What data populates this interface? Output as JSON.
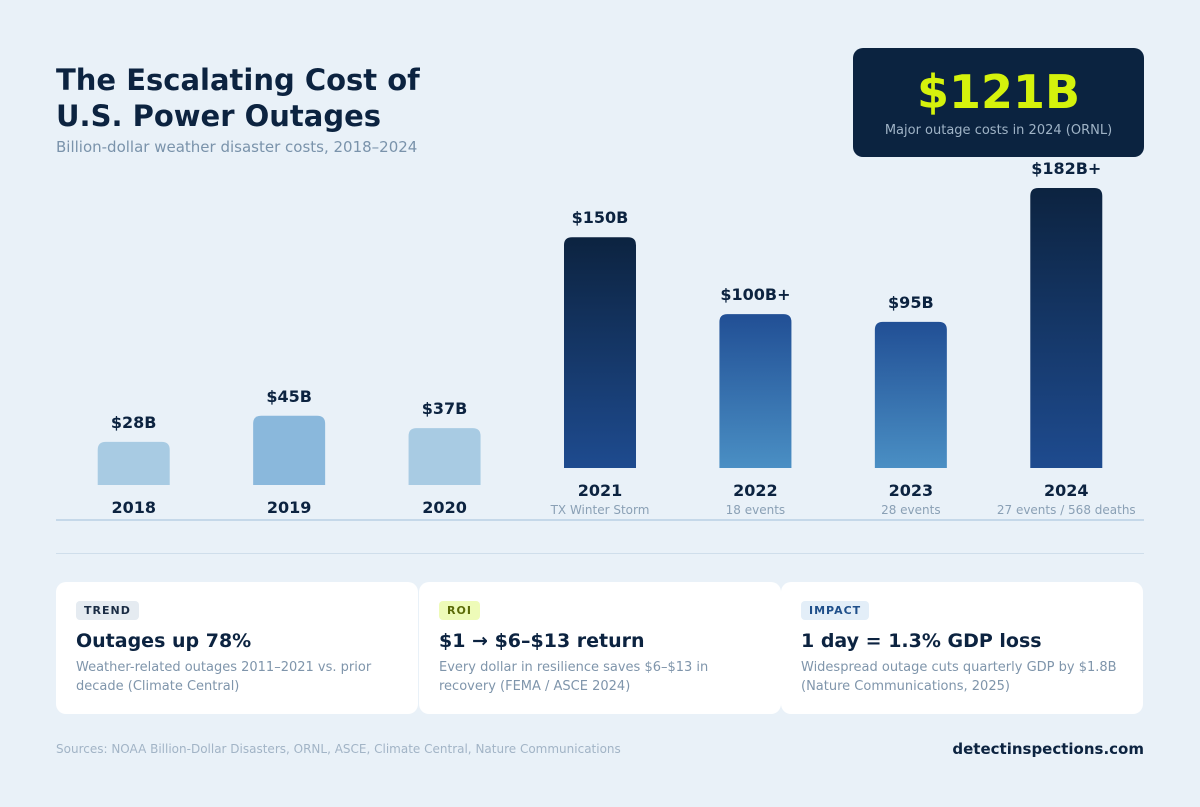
{
  "header": {
    "title_line1": "The Escalating Cost of",
    "title_line2": "U.S. Power Outages",
    "subtitle": "Billion-dollar weather disaster costs, 2018–2024"
  },
  "kpi": {
    "value": "$121B",
    "caption": "Major outage costs in 2024 (ORNL)"
  },
  "chart_data": {
    "type": "bar",
    "categories": [
      "2018",
      "2019",
      "2020",
      "2021",
      "2022",
      "2023",
      "2024"
    ],
    "values": [
      28,
      45,
      37,
      150,
      100,
      95,
      182
    ],
    "value_labels": [
      "$28B",
      "$45B",
      "$37B",
      "$150B",
      "$100B+",
      "$95B",
      "$182B+"
    ],
    "annotations": [
      "",
      "",
      "",
      "TX Winter Storm",
      "18 events",
      "28 events",
      "27 events / 568 deaths"
    ],
    "bar_colors": [
      "#a8cbe3",
      "#8ab8dc",
      "#a8cbe3",
      "#0d2747",
      "#2a5c9e",
      "#2a5c9e",
      "#0d2747"
    ],
    "title": "",
    "xlabel": "",
    "ylabel": "",
    "grid": false
  },
  "cards": [
    {
      "tag": "TREND",
      "tag_color": "#1a2c44",
      "tag_bg": "#e5ebf1",
      "headline": "Outages up 78%",
      "body": "Weather-related outages 2011–2021 vs. prior decade (Climate Central)"
    },
    {
      "tag": "ROI",
      "tag_color": "#5a6a07",
      "tag_bg": "#eefbb8",
      "headline": "$1 → $6–$13 return",
      "body": "Every dollar in resilience saves $6–$13 in recovery (FEMA / ASCE 2024)"
    },
    {
      "tag": "IMPACT",
      "tag_color": "#1f4f8a",
      "tag_bg": "#e3eef8",
      "headline": "1 day = 1.3% GDP loss",
      "body": "Widespread outage cuts quarterly GDP by $1.8B (Nature Communications, 2025)"
    }
  ],
  "footer": {
    "sources": "Sources: NOAA Billion-Dollar Disasters, ORNL, ASCE, Climate Central, Nature Communications",
    "brand": "detectinspections.com"
  }
}
